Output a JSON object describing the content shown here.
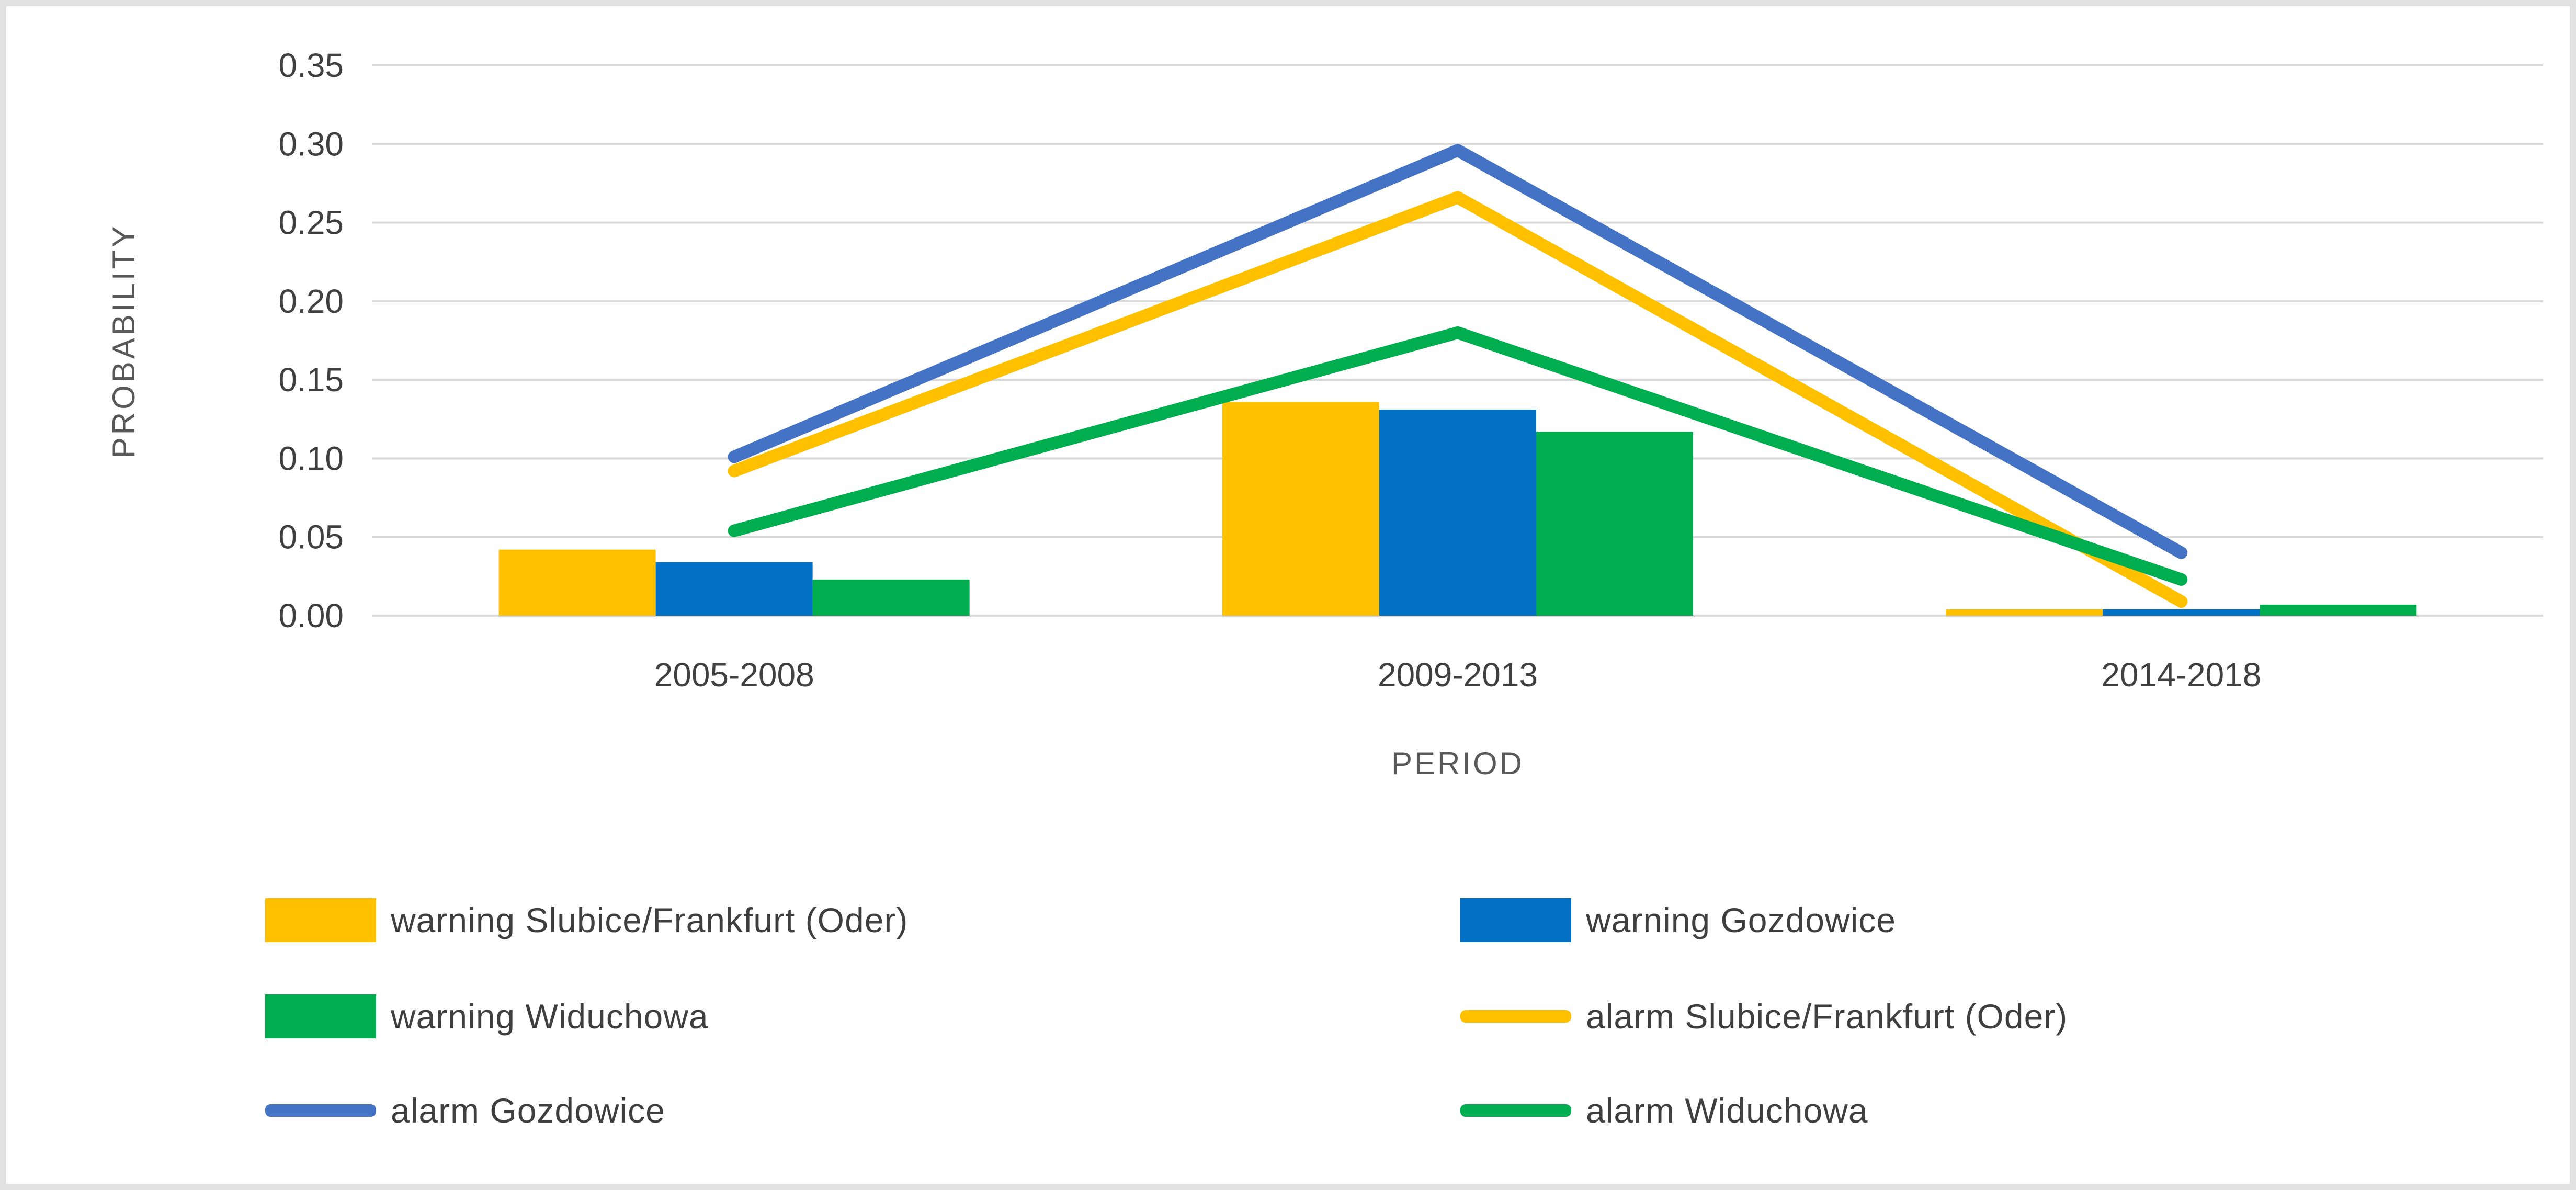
{
  "frame": {
    "background": "#ffffff",
    "border_color": "#e2e2e2"
  },
  "chart_data": {
    "type": "combo-bar-line",
    "title": "",
    "categories": [
      "2005-2008",
      "2009-2013",
      "2014-2018"
    ],
    "xlabel": "PERIOD",
    "ylabel": "PROBABILITY",
    "ylim": [
      0,
      0.35
    ],
    "ytick_step": 0.05,
    "ytick_labels": [
      "0.00",
      "0.05",
      "0.10",
      "0.15",
      "0.20",
      "0.25",
      "0.30",
      "0.35"
    ],
    "grid": true,
    "legend_position": "bottom",
    "bar_series": [
      {
        "name": "warning Slubice/Frankfurt (Oder)",
        "color": "#FFC000",
        "values": [
          0.042,
          0.136,
          0.004
        ]
      },
      {
        "name": "warning Gozdowice",
        "color": "#0271C5",
        "values": [
          0.034,
          0.131,
          0.004
        ]
      },
      {
        "name": "warning Widuchowa",
        "color": "#00AD4F",
        "values": [
          0.023,
          0.117,
          0.007
        ]
      }
    ],
    "line_series": [
      {
        "name": "alarm Slubice/Frankfurt (Oder)",
        "color": "#FFC000",
        "values": [
          0.092,
          0.266,
          0.009
        ]
      },
      {
        "name": "alarm Gozdowice",
        "color": "#4472C4",
        "values": [
          0.101,
          0.296,
          0.04
        ]
      },
      {
        "name": "alarm Widuchowa",
        "color": "#00AD4F",
        "values": [
          0.054,
          0.18,
          0.023
        ]
      }
    ],
    "legend_items": [
      {
        "label": "warning Slubice/Frankfurt (Oder)",
        "swatch": "rect",
        "color": "#FFC000"
      },
      {
        "label": "warning Gozdowice",
        "swatch": "rect",
        "color": "#0271C5"
      },
      {
        "label": "warning Widuchowa",
        "swatch": "rect",
        "color": "#00AD4F"
      },
      {
        "label": "alarm Slubice/Frankfurt (Oder)",
        "swatch": "line",
        "color": "#FFC000"
      },
      {
        "label": "alarm Gozdowice",
        "swatch": "line",
        "color": "#4472C4"
      },
      {
        "label": "alarm Widuchowa",
        "swatch": "line",
        "color": "#00AD4F"
      }
    ],
    "colors": {
      "gridline": "#D9D9D9",
      "tick_text": "#404040",
      "axis_title_text": "#595959",
      "legend_text": "#3f3f3f"
    }
  }
}
